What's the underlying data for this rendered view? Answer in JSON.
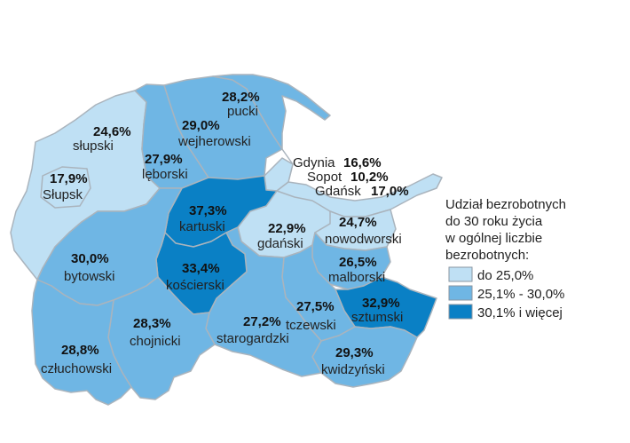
{
  "colors": {
    "light": "#bfe0f4",
    "medium": "#6fb6e4",
    "dark": "#0a80c5",
    "border": "#aab4bd"
  },
  "regions": [
    {
      "id": "slupski",
      "name": "słupski",
      "value": "24,6%",
      "class": "light"
    },
    {
      "id": "slupsk",
      "name": "Słupsk",
      "value": "17,9%",
      "class": "light"
    },
    {
      "id": "pucki",
      "name": "pucki",
      "value": "28,2%",
      "class": "medium"
    },
    {
      "id": "wejherowski",
      "name": "wejherowski",
      "value": "29,0%",
      "class": "medium"
    },
    {
      "id": "leborski",
      "name": "lęborski",
      "value": "27,9%",
      "class": "medium"
    },
    {
      "id": "kartuski",
      "name": "kartuski",
      "value": "37,3%",
      "class": "dark"
    },
    {
      "id": "gdanski",
      "name": "gdański",
      "value": "22,9%",
      "class": "light"
    },
    {
      "id": "nowodworski",
      "name": "nowodworski",
      "value": "24,7%",
      "class": "light"
    },
    {
      "id": "malborski",
      "name": "malborski",
      "value": "26,5%",
      "class": "medium"
    },
    {
      "id": "sztumski",
      "name": "sztumski",
      "value": "32,9%",
      "class": "dark"
    },
    {
      "id": "bytowski",
      "name": "bytowski",
      "value": "30,0%",
      "class": "medium"
    },
    {
      "id": "koscierski",
      "name": "kościerski",
      "value": "33,4%",
      "class": "dark"
    },
    {
      "id": "chojnicki",
      "name": "chojnicki",
      "value": "28,3%",
      "class": "medium"
    },
    {
      "id": "starogardzki",
      "name": "starogardzki",
      "value": "27,2%",
      "class": "medium"
    },
    {
      "id": "tczewski",
      "name": "tczewski",
      "value": "27,5%",
      "class": "medium"
    },
    {
      "id": "czluchowski",
      "name": "człuchowski",
      "value": "28,8%",
      "class": "medium"
    },
    {
      "id": "kwidzynski",
      "name": "kwidzyński",
      "value": "29,3%",
      "class": "medium"
    },
    {
      "id": "gdynia",
      "name": "Gdynia",
      "value": "16,6%",
      "class": "light"
    },
    {
      "id": "sopot",
      "name": "Sopot",
      "value": "10,2%",
      "class": "light"
    },
    {
      "id": "gdansk",
      "name": "Gdańsk",
      "value": "17,0%",
      "class": "light"
    }
  ],
  "legend": {
    "title_lines": [
      "Udział bezrobotnych",
      "do 30 roku życia",
      "w ogólnej liczbie",
      "bezrobotnych:"
    ],
    "items": [
      {
        "label": "do 25,0%",
        "class": "light"
      },
      {
        "label": "25,1% - 30,0%",
        "class": "medium"
      },
      {
        "label": "30,1% i więcej",
        "class": "dark"
      }
    ]
  }
}
